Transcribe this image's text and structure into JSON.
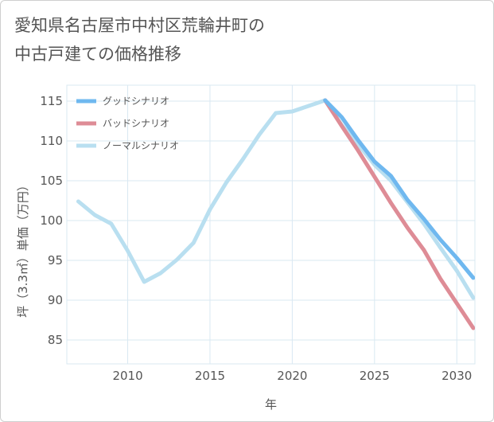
{
  "title": {
    "line1": "愛知県名古屋市中村区荒輪井町の",
    "line2": "中古戸建ての価格推移"
  },
  "chart_data": {
    "type": "line",
    "title": "愛知県名古屋市中村区荒輪井町の中古戸建ての価格推移",
    "xlabel": "年",
    "ylabel": "坪（3.3㎡）単価（万円）",
    "xlim": [
      2006.3,
      2031.1
    ],
    "ylim": [
      82,
      117
    ],
    "xticks": [
      2010,
      2015,
      2020,
      2025,
      2030
    ],
    "yticks": [
      85,
      90,
      95,
      100,
      105,
      110,
      115
    ],
    "grid": true,
    "legend_position": "top-left",
    "series": [
      {
        "name": "ノーマルシナリオ",
        "color": "#b9dff0",
        "x": [
          2007,
          2008,
          2009,
          2010,
          2011,
          2012,
          2013,
          2014,
          2015,
          2016,
          2017,
          2018,
          2019,
          2020,
          2021,
          2022,
          2023,
          2024,
          2025,
          2026,
          2027,
          2028,
          2029,
          2030,
          2031
        ],
        "values": [
          102.4,
          100.7,
          99.6,
          96.2,
          92.3,
          93.4,
          95.1,
          97.2,
          101.4,
          104.8,
          107.7,
          110.8,
          113.5,
          113.7,
          114.4,
          115.1,
          112.0,
          109.6,
          107.0,
          105.0,
          102.3,
          99.6,
          96.6,
          93.7,
          90.3
        ]
      },
      {
        "name": "バッドシナリオ",
        "color": "#de8c96",
        "x": [
          2022,
          2023,
          2024,
          2025,
          2026,
          2027,
          2028,
          2029,
          2030,
          2031
        ],
        "values": [
          115.1,
          111.9,
          108.8,
          105.5,
          102.2,
          99.1,
          96.3,
          92.7,
          89.6,
          86.5
        ]
      },
      {
        "name": "グッドシナリオ",
        "color": "#6fb8ef",
        "x": [
          2022,
          2023,
          2024,
          2025,
          2026,
          2027,
          2028,
          2029,
          2030,
          2031
        ],
        "values": [
          115.1,
          113.0,
          110.1,
          107.4,
          105.6,
          102.6,
          100.2,
          97.6,
          95.3,
          92.8
        ]
      }
    ],
    "legend": [
      "グッドシナリオ",
      "バッドシナリオ",
      "ノーマルシナリオ"
    ]
  }
}
